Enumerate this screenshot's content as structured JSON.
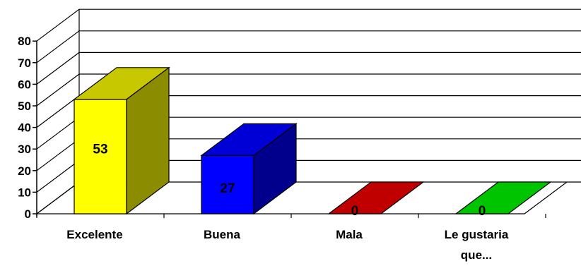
{
  "chart_data": {
    "type": "bar",
    "three_d": true,
    "categories": [
      [
        "Excelente"
      ],
      [
        "Buena"
      ],
      [
        "Mala"
      ],
      [
        "Le gustaria",
        "que..."
      ]
    ],
    "values": [
      53,
      27,
      0,
      0
    ],
    "data_labels": [
      "53",
      "27",
      "0",
      "0"
    ],
    "colors": [
      {
        "front": "#ffff00",
        "top": "#c8c800",
        "side": "#8c8c00"
      },
      {
        "front": "#0000ff",
        "top": "#0000d6",
        "side": "#00008c"
      },
      {
        "front": "#c00000",
        "top": "#c00000",
        "side": "#800000"
      },
      {
        "front": "#00cc00",
        "top": "#00c400",
        "side": "#008000"
      }
    ],
    "ylim": [
      0,
      80
    ],
    "yticks": [
      0,
      10,
      20,
      30,
      40,
      50,
      60,
      70,
      80
    ],
    "grid": true,
    "legend": "none",
    "title": "",
    "xlabel": "",
    "ylabel": ""
  }
}
